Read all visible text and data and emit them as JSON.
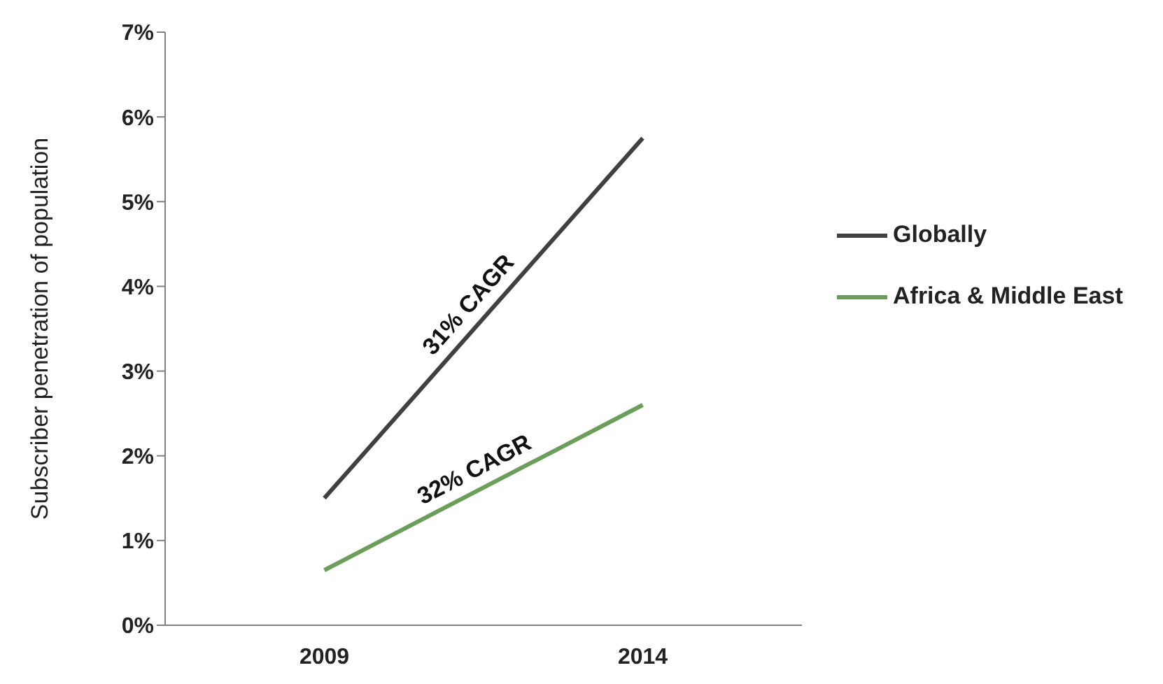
{
  "chart_data": {
    "type": "line",
    "ylabel": "Subscriber penetration of population",
    "categories": [
      "2009",
      "2014"
    ],
    "series": [
      {
        "name": "Globally",
        "color": "#404040",
        "values": [
          1.5,
          5.75
        ]
      },
      {
        "name": "Africa & Middle East",
        "color": "#6a9e5a",
        "values": [
          0.65,
          2.6
        ]
      }
    ],
    "ylim": [
      0,
      7
    ],
    "yticks": [
      {
        "value": 0,
        "label": "0%"
      },
      {
        "value": 1,
        "label": "1%"
      },
      {
        "value": 2,
        "label": "2%"
      },
      {
        "value": 3,
        "label": "3%"
      },
      {
        "value": 4,
        "label": "4%"
      },
      {
        "value": 5,
        "label": "5%"
      },
      {
        "value": 6,
        "label": "6%"
      },
      {
        "value": 7,
        "label": "7%"
      }
    ],
    "annotations": [
      "31% CAGR",
      "32% CAGR"
    ],
    "legend": "right",
    "grid": false,
    "marker": "none",
    "line_style": "solid"
  }
}
